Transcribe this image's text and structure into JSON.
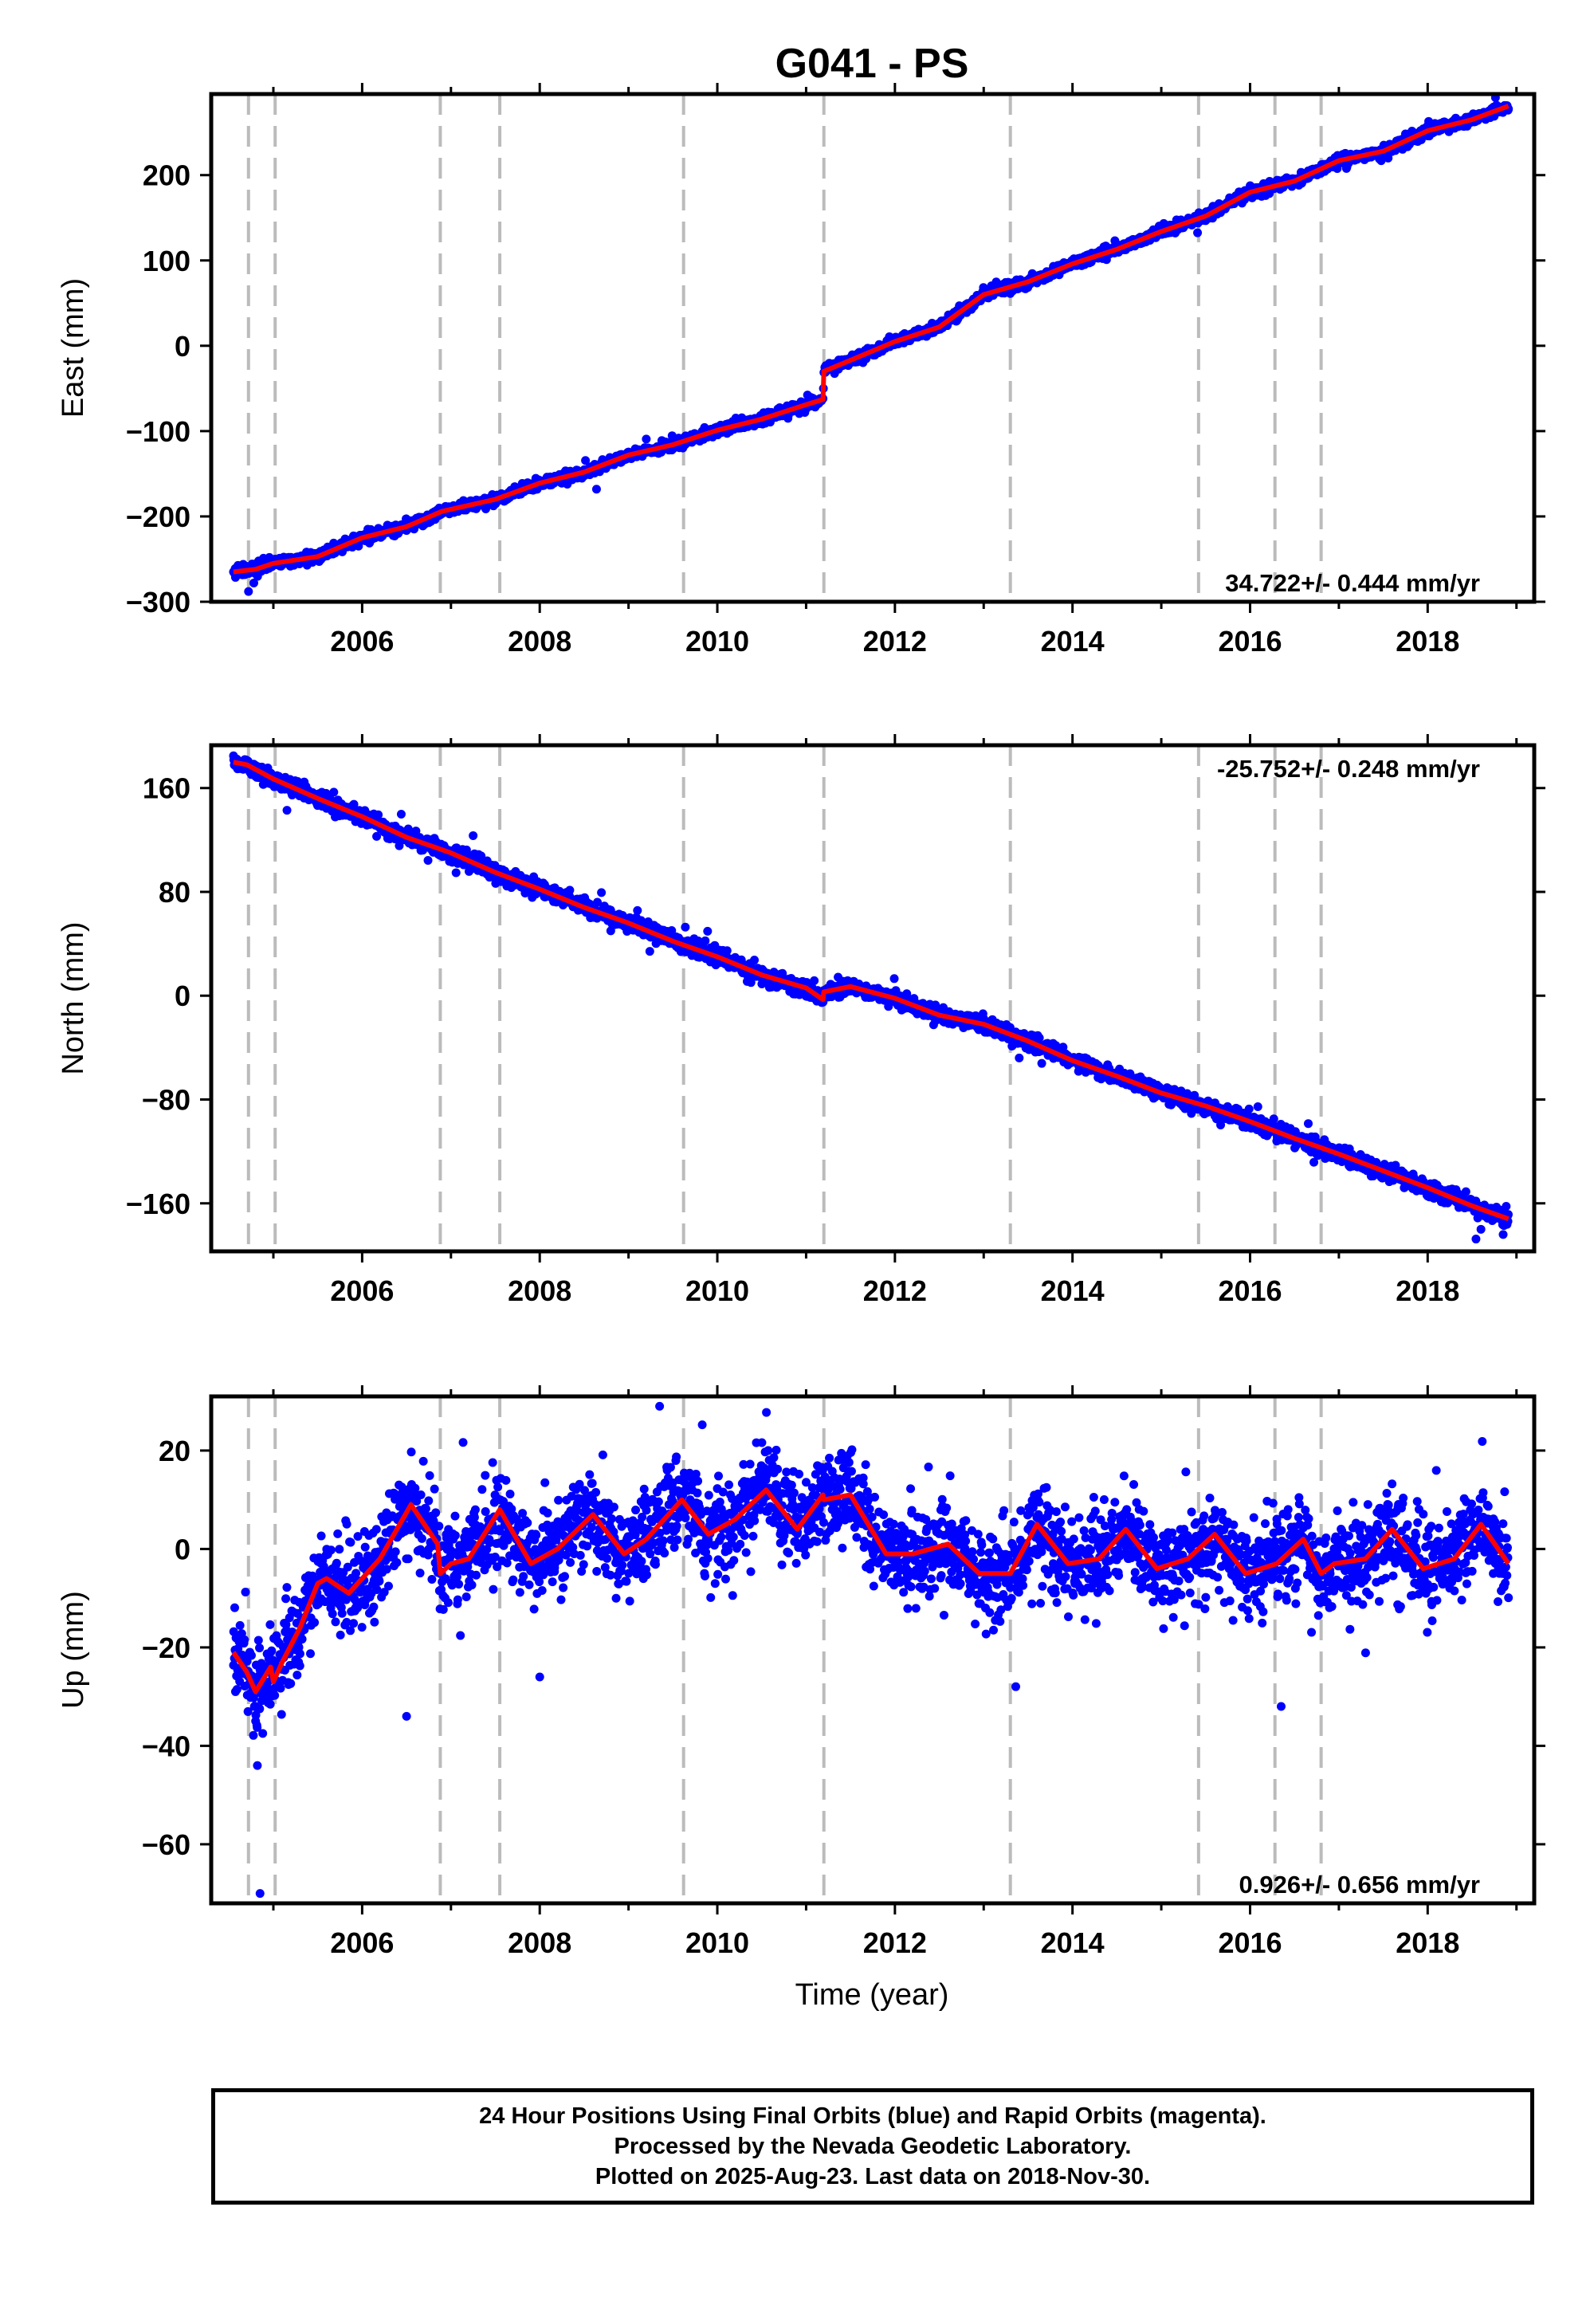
{
  "figure": {
    "title": "G041 - PS",
    "xlabel": "Time (year)",
    "caption_lines": [
      "24 Hour Positions Using Final Orbits (blue) and Rapid Orbits (magenta).",
      "Processed by the Nevada Geodetic Laboratory.",
      "Plotted on 2025-Aug-23. Last data on 2018-Nov-30."
    ]
  },
  "colors": {
    "points": "#0000ff",
    "fit": "#ff0000",
    "event_lines": "#bbbbbb",
    "axis": "#000000"
  },
  "chart_data": [
    {
      "type": "scatter",
      "component": "East",
      "ylabel": "East (mm)",
      "xlim": [
        2004.3,
        2019.2
      ],
      "ylim": [
        -300,
        295
      ],
      "xticks": [
        2006,
        2008,
        2010,
        2012,
        2014,
        2016,
        2018
      ],
      "yticks": [
        -300,
        -200,
        -100,
        0,
        100,
        200
      ],
      "event_lines": [
        2004.72,
        2005.02,
        2006.88,
        2007.55,
        2009.62,
        2011.2,
        2013.3,
        2015.42,
        2016.28,
        2016.8
      ],
      "rate_label": "34.722+/- 0.444 mm/yr",
      "rate_position": "bottom-right",
      "fit_series": {
        "x": [
          2004.55,
          2004.8,
          2005.0,
          2005.5,
          2006.0,
          2006.5,
          2006.9,
          2007.5,
          2008.0,
          2008.5,
          2009.0,
          2009.5,
          2010.0,
          2010.5,
          2011.0,
          2011.19,
          2011.2,
          2011.5,
          2012.0,
          2012.5,
          2013.0,
          2013.5,
          2014.0,
          2014.5,
          2015.0,
          2015.5,
          2016.0,
          2016.5,
          2017.0,
          2017.5,
          2018.0,
          2018.5,
          2018.91
        ],
        "y": [
          -265,
          -262,
          -255,
          -247,
          -225,
          -212,
          -194,
          -180,
          -161,
          -148,
          -128,
          -116,
          -99,
          -86,
          -69,
          -63,
          -30,
          -17,
          5,
          22,
          60,
          75,
          96,
          113,
          134,
          152,
          180,
          193,
          217,
          228,
          252,
          265,
          281
        ]
      },
      "points": {
        "count": 3000,
        "noise": 3,
        "outliers": [
          [
            2004.72,
            -288
          ],
          [
            2004.78,
            -278
          ],
          [
            2008.3,
            -152
          ]
        ]
      }
    },
    {
      "type": "scatter",
      "component": "North",
      "ylabel": "North (mm)",
      "xlim": [
        2004.3,
        2019.2
      ],
      "ylim": [
        -197,
        193
      ],
      "xticks": [
        2006,
        2008,
        2010,
        2012,
        2014,
        2016,
        2018
      ],
      "yticks": [
        -160,
        -80,
        0,
        80,
        160
      ],
      "event_lines": [
        2004.72,
        2005.02,
        2006.88,
        2007.55,
        2009.62,
        2011.2,
        2013.3,
        2015.42,
        2016.28,
        2016.8
      ],
      "rate_label": "-25.752+/- 0.248 mm/yr",
      "rate_position": "top-right",
      "fit_series": {
        "x": [
          2004.55,
          2004.7,
          2005.0,
          2005.5,
          2006.0,
          2006.5,
          2007.0,
          2007.5,
          2008.0,
          2008.5,
          2009.0,
          2009.5,
          2010.0,
          2010.5,
          2011.0,
          2011.19,
          2011.2,
          2011.5,
          2012.0,
          2012.5,
          2013.0,
          2013.5,
          2014.0,
          2014.5,
          2015.0,
          2015.5,
          2016.0,
          2016.5,
          2017.0,
          2017.5,
          2018.0,
          2018.5,
          2018.91
        ],
        "y": [
          180,
          178,
          167,
          152,
          138,
          122,
          110,
          95,
          82,
          68,
          56,
          42,
          30,
          16,
          6,
          -3,
          3,
          7,
          -2,
          -15,
          -22,
          -35,
          -50,
          -62,
          -75,
          -85,
          -97,
          -110,
          -122,
          -135,
          -148,
          -162,
          -172
        ]
      },
      "points": {
        "count": 3000,
        "noise": 3,
        "outliers": [
          [
            2008.8,
            50
          ],
          [
            2013.4,
            -48
          ],
          [
            2016.3,
            -112
          ],
          [
            2018.6,
            -180
          ],
          [
            2018.85,
            -184
          ]
        ]
      }
    },
    {
      "type": "scatter",
      "component": "Up",
      "ylabel": "Up (mm)",
      "xlim": [
        2004.3,
        2019.2
      ],
      "ylim": [
        -72,
        31
      ],
      "xticks": [
        2006,
        2008,
        2010,
        2012,
        2014,
        2016,
        2018
      ],
      "yticks": [
        -60,
        -40,
        -20,
        0,
        20
      ],
      "event_lines": [
        2004.72,
        2005.02,
        2006.88,
        2007.55,
        2009.62,
        2011.2,
        2013.3,
        2015.42,
        2016.28,
        2016.8
      ],
      "rate_label": "0.926+/- 0.656 mm/yr",
      "rate_position": "bottom-right",
      "fit_series": {
        "x": [
          2004.55,
          2004.7,
          2004.8,
          2004.97,
          2005.0,
          2005.1,
          2005.3,
          2005.5,
          2005.6,
          2005.85,
          2006.2,
          2006.55,
          2006.85,
          2006.88,
          2007.0,
          2007.2,
          2007.55,
          2007.9,
          2008.2,
          2008.6,
          2008.95,
          2009.2,
          2009.6,
          2009.9,
          2010.2,
          2010.55,
          2010.9,
          2011.19,
          2011.2,
          2011.5,
          2011.9,
          2012.2,
          2012.6,
          2012.95,
          2013.3,
          2013.6,
          2013.95,
          2014.3,
          2014.6,
          2014.95,
          2015.3,
          2015.6,
          2015.95,
          2016.3,
          2016.6,
          2016.8,
          2016.95,
          2017.3,
          2017.6,
          2017.95,
          2018.3,
          2018.6,
          2018.91
        ],
        "y": [
          -21,
          -25,
          -29,
          -24,
          -27,
          -23,
          -16,
          -7,
          -6,
          -9,
          -2,
          9,
          1,
          -5,
          -3,
          -2,
          8,
          -3,
          0,
          7,
          -1,
          2,
          10,
          3,
          6,
          12,
          4,
          11,
          10,
          11,
          -1,
          -1,
          1,
          -5,
          -5,
          5,
          -3,
          -2,
          4,
          -4,
          -2,
          3,
          -5,
          -3,
          2,
          -5,
          -3,
          -2,
          4,
          -4,
          -2,
          5,
          -3
        ]
      },
      "points": {
        "count": 3000,
        "noise": 4.5,
        "outliers": [
          [
            2004.82,
            -44
          ],
          [
            2004.85,
            -70
          ],
          [
            2006.5,
            -34
          ],
          [
            2008.0,
            -26
          ],
          [
            2009.35,
            29
          ],
          [
            2016.35,
            -32
          ]
        ]
      }
    }
  ]
}
